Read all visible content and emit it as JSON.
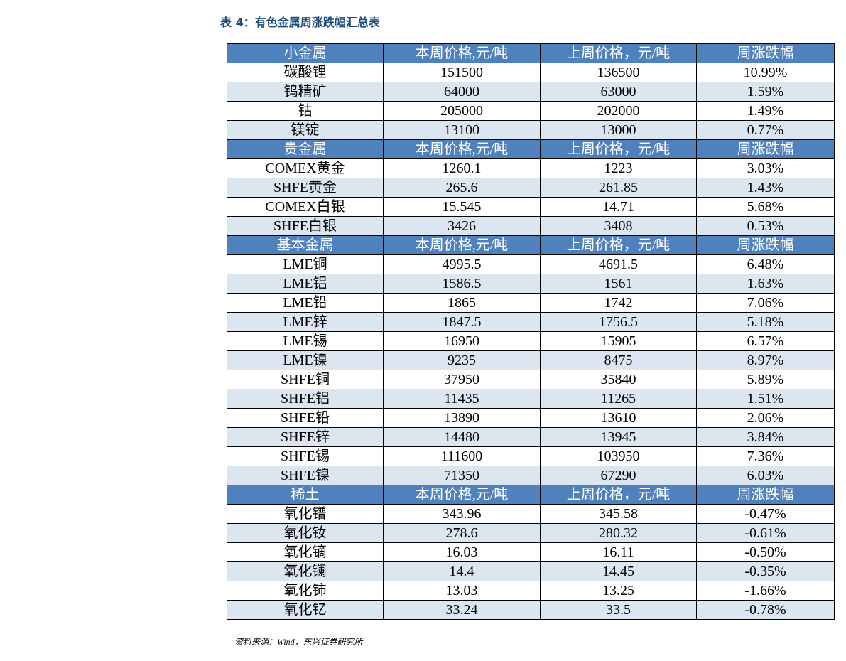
{
  "title": "表 4：有色金属周涨跌幅汇总表",
  "table": {
    "sections": [
      {
        "header": [
          "小金属",
          "本周价格,元/吨",
          "上周价格，元/吨",
          "周涨跌幅"
        ],
        "rows": [
          [
            "碳酸锂",
            "151500",
            "136500",
            "10.99%"
          ],
          [
            "钨精矿",
            "64000",
            "63000",
            "1.59%"
          ],
          [
            "钴",
            "205000",
            "202000",
            "1.49%"
          ],
          [
            "镁锭",
            "13100",
            "13000",
            "0.77%"
          ]
        ]
      },
      {
        "header": [
          "贵金属",
          "本周价格,元/吨",
          "上周价格，元/吨",
          "周涨跌幅"
        ],
        "rows": [
          [
            "COMEX黄金",
            "1260.1",
            "1223",
            "3.03%"
          ],
          [
            "SHFE黄金",
            "265.6",
            "261.85",
            "1.43%"
          ],
          [
            "COMEX白银",
            "15.545",
            "14.71",
            "5.68%"
          ],
          [
            "SHFE白银",
            "3426",
            "3408",
            "0.53%"
          ]
        ]
      },
      {
        "header": [
          "基本金属",
          "本周价格,元/吨",
          "上周价格，元/吨",
          "周涨跌幅"
        ],
        "rows": [
          [
            "LME铜",
            "4995.5",
            "4691.5",
            "6.48%"
          ],
          [
            "LME铝",
            "1586.5",
            "1561",
            "1.63%"
          ],
          [
            "LME铅",
            "1865",
            "1742",
            "7.06%"
          ],
          [
            "LME锌",
            "1847.5",
            "1756.5",
            "5.18%"
          ],
          [
            "LME锡",
            "16950",
            "15905",
            "6.57%"
          ],
          [
            "LME镍",
            "9235",
            "8475",
            "8.97%"
          ],
          [
            "SHFE铜",
            "37950",
            "35840",
            "5.89%"
          ],
          [
            "SHFE铝",
            "11435",
            "11265",
            "1.51%"
          ],
          [
            "SHFE铅",
            "13890",
            "13610",
            "2.06%"
          ],
          [
            "SHFE锌",
            "14480",
            "13945",
            "3.84%"
          ],
          [
            "SHFE锡",
            "111600",
            "103950",
            "7.36%"
          ],
          [
            "SHFE镍",
            "71350",
            "67290",
            "6.03%"
          ]
        ]
      },
      {
        "header": [
          "稀土",
          "本周价格,元/吨",
          "上周价格，元/吨",
          "周涨跌幅"
        ],
        "rows": [
          [
            "氧化镨",
            "343.96",
            "345.58",
            "-0.47%"
          ],
          [
            "氧化钕",
            "278.6",
            "280.32",
            "-0.61%"
          ],
          [
            "氧化镝",
            "16.03",
            "16.11",
            "-0.50%"
          ],
          [
            "氧化镧",
            "14.4",
            "14.45",
            "-0.35%"
          ],
          [
            "氧化铈",
            "13.03",
            "13.25",
            "-1.66%"
          ],
          [
            "氧化钇",
            "33.24",
            "33.5",
            "-0.78%"
          ]
        ]
      }
    ]
  },
  "source": "资料来源：Wind，东兴证券研究所"
}
